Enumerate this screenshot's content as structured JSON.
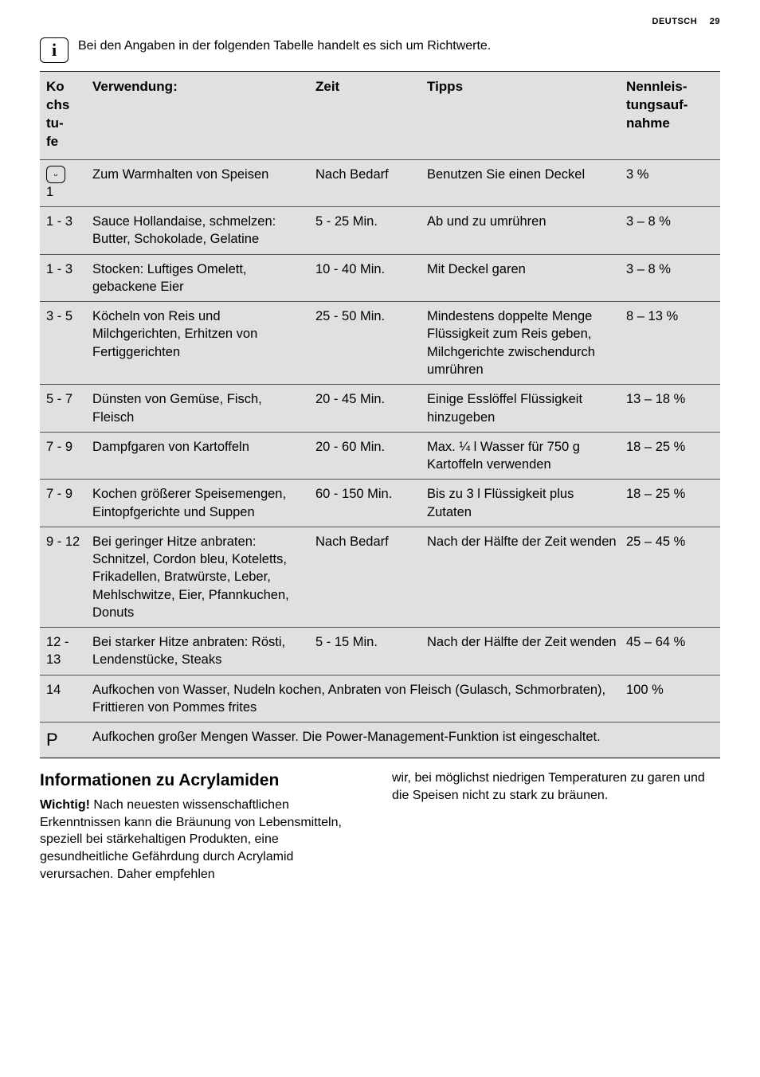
{
  "page": {
    "lang_label": "DEUTSCH",
    "number": "29"
  },
  "info_note": "Bei den Angaben in der folgenden Tabelle handelt es sich um Richtwerte.",
  "table": {
    "headers": {
      "level": "Ko\nchs\ntu-\nfe",
      "usage": "Verwendung:",
      "time": "Zeit",
      "tips": "Tipps",
      "power": "Nennleis-\ntungsauf-\nnahme"
    },
    "rows": [
      {
        "level_extra": "1",
        "usage": "Zum Warmhalten von Speisen",
        "time": "Nach Bedarf",
        "tips": "Benutzen Sie einen Deckel",
        "power": "3 %"
      },
      {
        "level": "1 - 3",
        "usage": "Sauce Hollandaise, schmelzen: Butter, Schokolade, Gelatine",
        "time": "5 - 25 Min.",
        "tips": "Ab und zu umrühren",
        "power": "3 – 8 %"
      },
      {
        "level": "1 - 3",
        "usage": "Stocken: Luftiges Omelett, gebackene Eier",
        "time": "10 - 40 Min.",
        "tips": "Mit Deckel garen",
        "power": "3 – 8 %"
      },
      {
        "level": "3 - 5",
        "usage": "Köcheln von Reis und Milchgerichten, Erhitzen von Fertiggerichten",
        "time": "25 - 50 Min.",
        "tips": "Mindestens doppelte Menge Flüssigkeit zum Reis geben, Milchgerichte zwischendurch umrühren",
        "power": "8 – 13 %"
      },
      {
        "level": "5 - 7",
        "usage": "Dünsten von Gemüse, Fisch, Fleisch",
        "time": "20 - 45 Min.",
        "tips": "Einige Esslöffel Flüssigkeit hinzugeben",
        "power": "13 – 18 %"
      },
      {
        "level": "7 - 9",
        "usage": "Dampfgaren von Kartoffeln",
        "time": "20 - 60 Min.",
        "tips": "Max. ¼ l Wasser für 750 g Kartoffeln verwenden",
        "power": "18 – 25 %"
      },
      {
        "level": "7 - 9",
        "usage": "Kochen größerer Speisemengen, Eintopfgerichte und Suppen",
        "time": "60 - 150 Min.",
        "tips": "Bis zu 3 l Flüssigkeit plus Zutaten",
        "power": "18 – 25 %"
      },
      {
        "level": "9 - 12",
        "usage": "Bei geringer Hitze anbraten: Schnitzel, Cordon bleu, Koteletts, Frikadellen, Bratwürste, Leber, Mehlschwitze, Eier, Pfannkuchen, Donuts",
        "time": "Nach Bedarf",
        "tips": "Nach der Hälfte der Zeit wenden",
        "power": "25 – 45 %"
      },
      {
        "level": "12 - 13",
        "usage": "Bei starker Hitze anbraten: Rösti, Lendenstücke, Steaks",
        "time": "5 - 15 Min.",
        "tips": "Nach der Hälfte der Zeit wenden",
        "power": "45 – 64 %"
      },
      {
        "level": "14",
        "usage_wide": "Aufkochen von Wasser, Nudeln kochen, Anbraten von Fleisch (Gulasch, Schmorbraten), Frittieren von Pommes frites",
        "power": "100 %"
      },
      {
        "level_is_p": true,
        "usage_full": "Aufkochen großer Mengen Wasser. Die Power-Management-Funktion ist eingeschaltet."
      }
    ]
  },
  "section": {
    "heading": "Informationen zu Acrylamiden",
    "left_bold": "Wichtig!",
    "left_rest": " Nach neuesten wissenschaftlichen Erkenntnissen kann die Bräunung von Lebensmitteln, speziell bei stärkehaltigen Produkten, eine gesundheitliche Gefährdung durch Acrylamid verursachen. Daher empfehlen",
    "right": "wir, bei möglichst niedrigen Temperaturen zu garen und die Speisen nicht zu stark zu bräunen."
  }
}
